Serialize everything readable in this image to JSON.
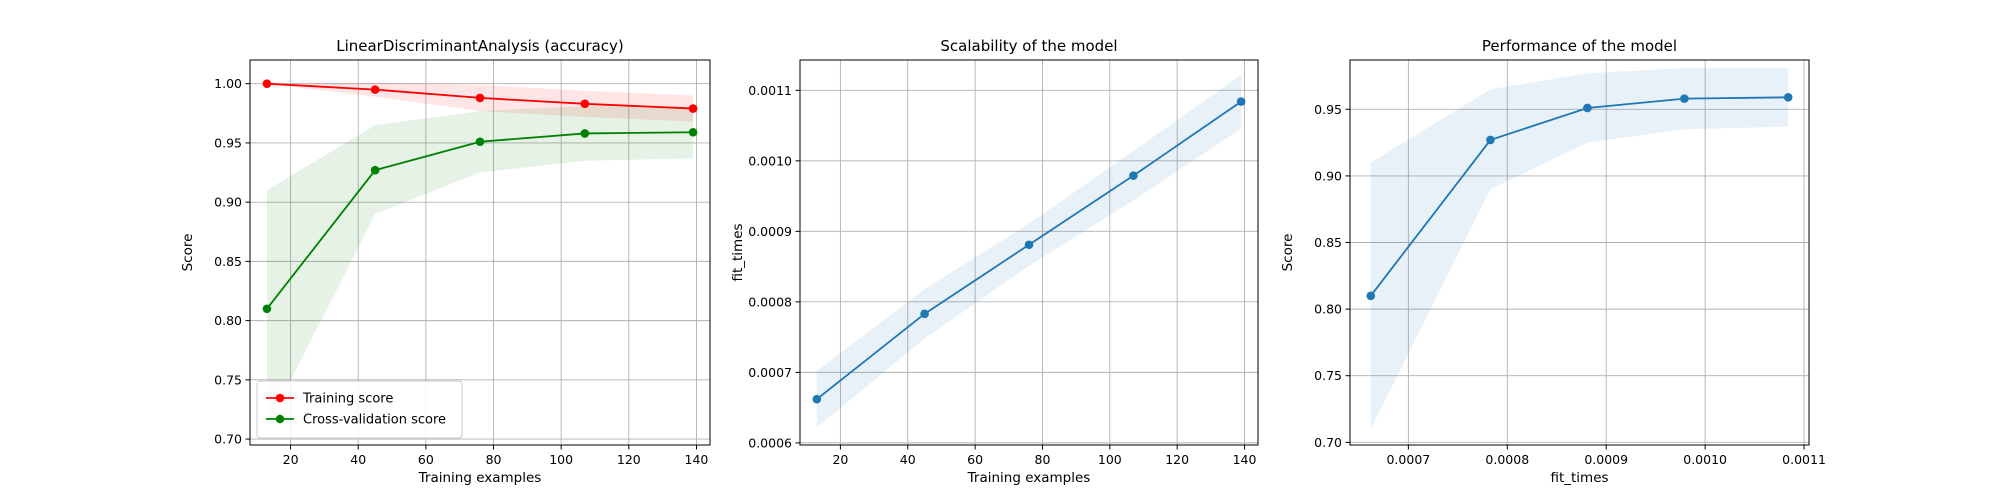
{
  "chart_data": [
    {
      "type": "line",
      "title": "LinearDiscriminantAnalysis (accuracy)",
      "xlabel": "Training examples",
      "ylabel": "Score",
      "xlim": [
        8,
        144
      ],
      "ylim": [
        0.695,
        1.02
      ],
      "xticks": [
        20,
        40,
        60,
        80,
        100,
        120,
        140
      ],
      "yticks": [
        0.7,
        0.75,
        0.8,
        0.85,
        0.9,
        0.95,
        1.0
      ],
      "ytick_labels": [
        "0.70",
        "0.75",
        "0.80",
        "0.85",
        "0.90",
        "0.95",
        "1.00"
      ],
      "grid": true,
      "legend": "lower-left",
      "x": [
        13,
        45,
        76,
        107,
        139
      ],
      "series": [
        {
          "name": "Training score",
          "color": "#ff0000",
          "fill": "#ff0000",
          "values": [
            1.0,
            0.995,
            0.988,
            0.983,
            0.979
          ],
          "lower": [
            1.0,
            0.989,
            0.977,
            0.972,
            0.968
          ],
          "upper": [
            1.0,
            1.001,
            0.999,
            0.994,
            0.99
          ]
        },
        {
          "name": "Cross-validation score",
          "color": "#008000",
          "fill": "#008000",
          "values": [
            0.81,
            0.927,
            0.951,
            0.958,
            0.959
          ],
          "lower": [
            0.71,
            0.89,
            0.925,
            0.935,
            0.937
          ],
          "upper": [
            0.91,
            0.965,
            0.977,
            0.981,
            0.981
          ]
        }
      ]
    },
    {
      "type": "line",
      "title": "Scalability of the model",
      "xlabel": "Training examples",
      "ylabel": "fit_times",
      "xlim": [
        8,
        144
      ],
      "ylim": [
        0.000597,
        0.001143
      ],
      "xticks": [
        20,
        40,
        60,
        80,
        100,
        120,
        140
      ],
      "yticks": [
        0.0006,
        0.0007,
        0.0008,
        0.0009,
        0.001,
        0.0011
      ],
      "ytick_labels": [
        "0.0006",
        "0.0007",
        "0.0008",
        "0.0009",
        "0.0010",
        "0.0011"
      ],
      "grid": true,
      "x": [
        13,
        45,
        76,
        107,
        139
      ],
      "series": [
        {
          "color": "#1f77b4",
          "fill": "#1f77b4",
          "values": [
            0.000662,
            0.000783,
            0.000881,
            0.000979,
            0.001084
          ],
          "lower": [
            0.000622,
            0.000748,
            0.000851,
            0.000944,
            0.001046
          ],
          "upper": [
            0.000702,
            0.000818,
            0.000911,
            0.001014,
            0.001122
          ]
        }
      ]
    },
    {
      "type": "line",
      "title": "Performance of the model",
      "xlabel": "fit_times",
      "ylabel": "Score",
      "xlim": [
        0.000641,
        0.001105
      ],
      "ylim": [
        0.698,
        0.987
      ],
      "xticks": [
        0.0007,
        0.0008,
        0.0009,
        0.001,
        0.0011
      ],
      "xtick_labels": [
        "0.0007",
        "0.0008",
        "0.0009",
        "0.0010",
        "0.0011"
      ],
      "yticks": [
        0.7,
        0.75,
        0.8,
        0.85,
        0.9,
        0.95
      ],
      "ytick_labels": [
        "0.70",
        "0.75",
        "0.80",
        "0.85",
        "0.90",
        "0.95"
      ],
      "grid": true,
      "x": [
        0.000662,
        0.000783,
        0.000881,
        0.000979,
        0.001084
      ],
      "series": [
        {
          "color": "#1f77b4",
          "fill": "#1f77b4",
          "values": [
            0.81,
            0.927,
            0.951,
            0.958,
            0.959
          ],
          "lower": [
            0.71,
            0.89,
            0.925,
            0.935,
            0.937
          ],
          "upper": [
            0.91,
            0.965,
            0.977,
            0.981,
            0.981
          ]
        }
      ]
    }
  ]
}
